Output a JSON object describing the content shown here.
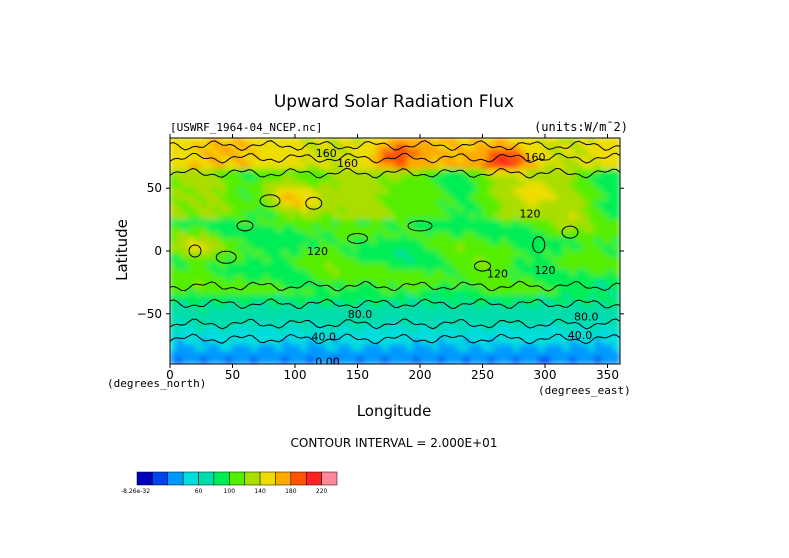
{
  "chart_data": {
    "type": "heatmap",
    "title": "Upward Solar Radiation Flux",
    "dataset_label": "[USWRF_1964-04_NCEP.nc]",
    "units_label": "(units:W/m¯2)",
    "xlabel": "Longitude",
    "ylabel": "Latitude",
    "x_unit_label": "(degrees_east)",
    "y_unit_label": "(degrees_north)",
    "xlim": [
      0,
      360
    ],
    "ylim": [
      -90,
      90
    ],
    "x_ticks": [
      0,
      50,
      100,
      150,
      200,
      250,
      300,
      350
    ],
    "y_ticks": [
      50,
      0,
      -50
    ],
    "x_tick_labels": [
      "0",
      "50",
      "100",
      "150",
      "200",
      "250",
      "300",
      "350"
    ],
    "y_tick_labels": [
      "50",
      "0",
      "−50"
    ],
    "contour_interval_text": "CONTOUR INTERVAL = 2.000E+01",
    "contour_labels": [
      {
        "text": "160",
        "lon": 125,
        "lat": 78
      },
      {
        "text": "160",
        "lon": 142,
        "lat": 70
      },
      {
        "text": "160",
        "lon": 292,
        "lat": 75
      },
      {
        "text": "120",
        "lon": 288,
        "lat": 30
      },
      {
        "text": "120",
        "lon": 118,
        "lat": 0
      },
      {
        "text": "120",
        "lon": 262,
        "lat": -18
      },
      {
        "text": "120",
        "lon": 300,
        "lat": -15
      },
      {
        "text": "80.0",
        "lon": 152,
        "lat": -50
      },
      {
        "text": "80.0",
        "lon": 333,
        "lat": -52
      },
      {
        "text": "40.0",
        "lon": 123,
        "lat": -68
      },
      {
        "text": "40.0",
        "lon": 328,
        "lat": -67
      },
      {
        "text": "0.00",
        "lon": 126,
        "lat": -88
      }
    ],
    "colorbar": {
      "colors": [
        "#0000bb",
        "#0044ee",
        "#0099ff",
        "#00dddd",
        "#00ddaa",
        "#00ee55",
        "#55ee00",
        "#aadd00",
        "#eedd00",
        "#ffaa00",
        "#ff5500",
        "#ff2222",
        "#ff8899"
      ],
      "tick_labels": [
        "-8.26e-32",
        "60",
        "100",
        "140",
        "180",
        "220"
      ]
    },
    "grid": false
  }
}
